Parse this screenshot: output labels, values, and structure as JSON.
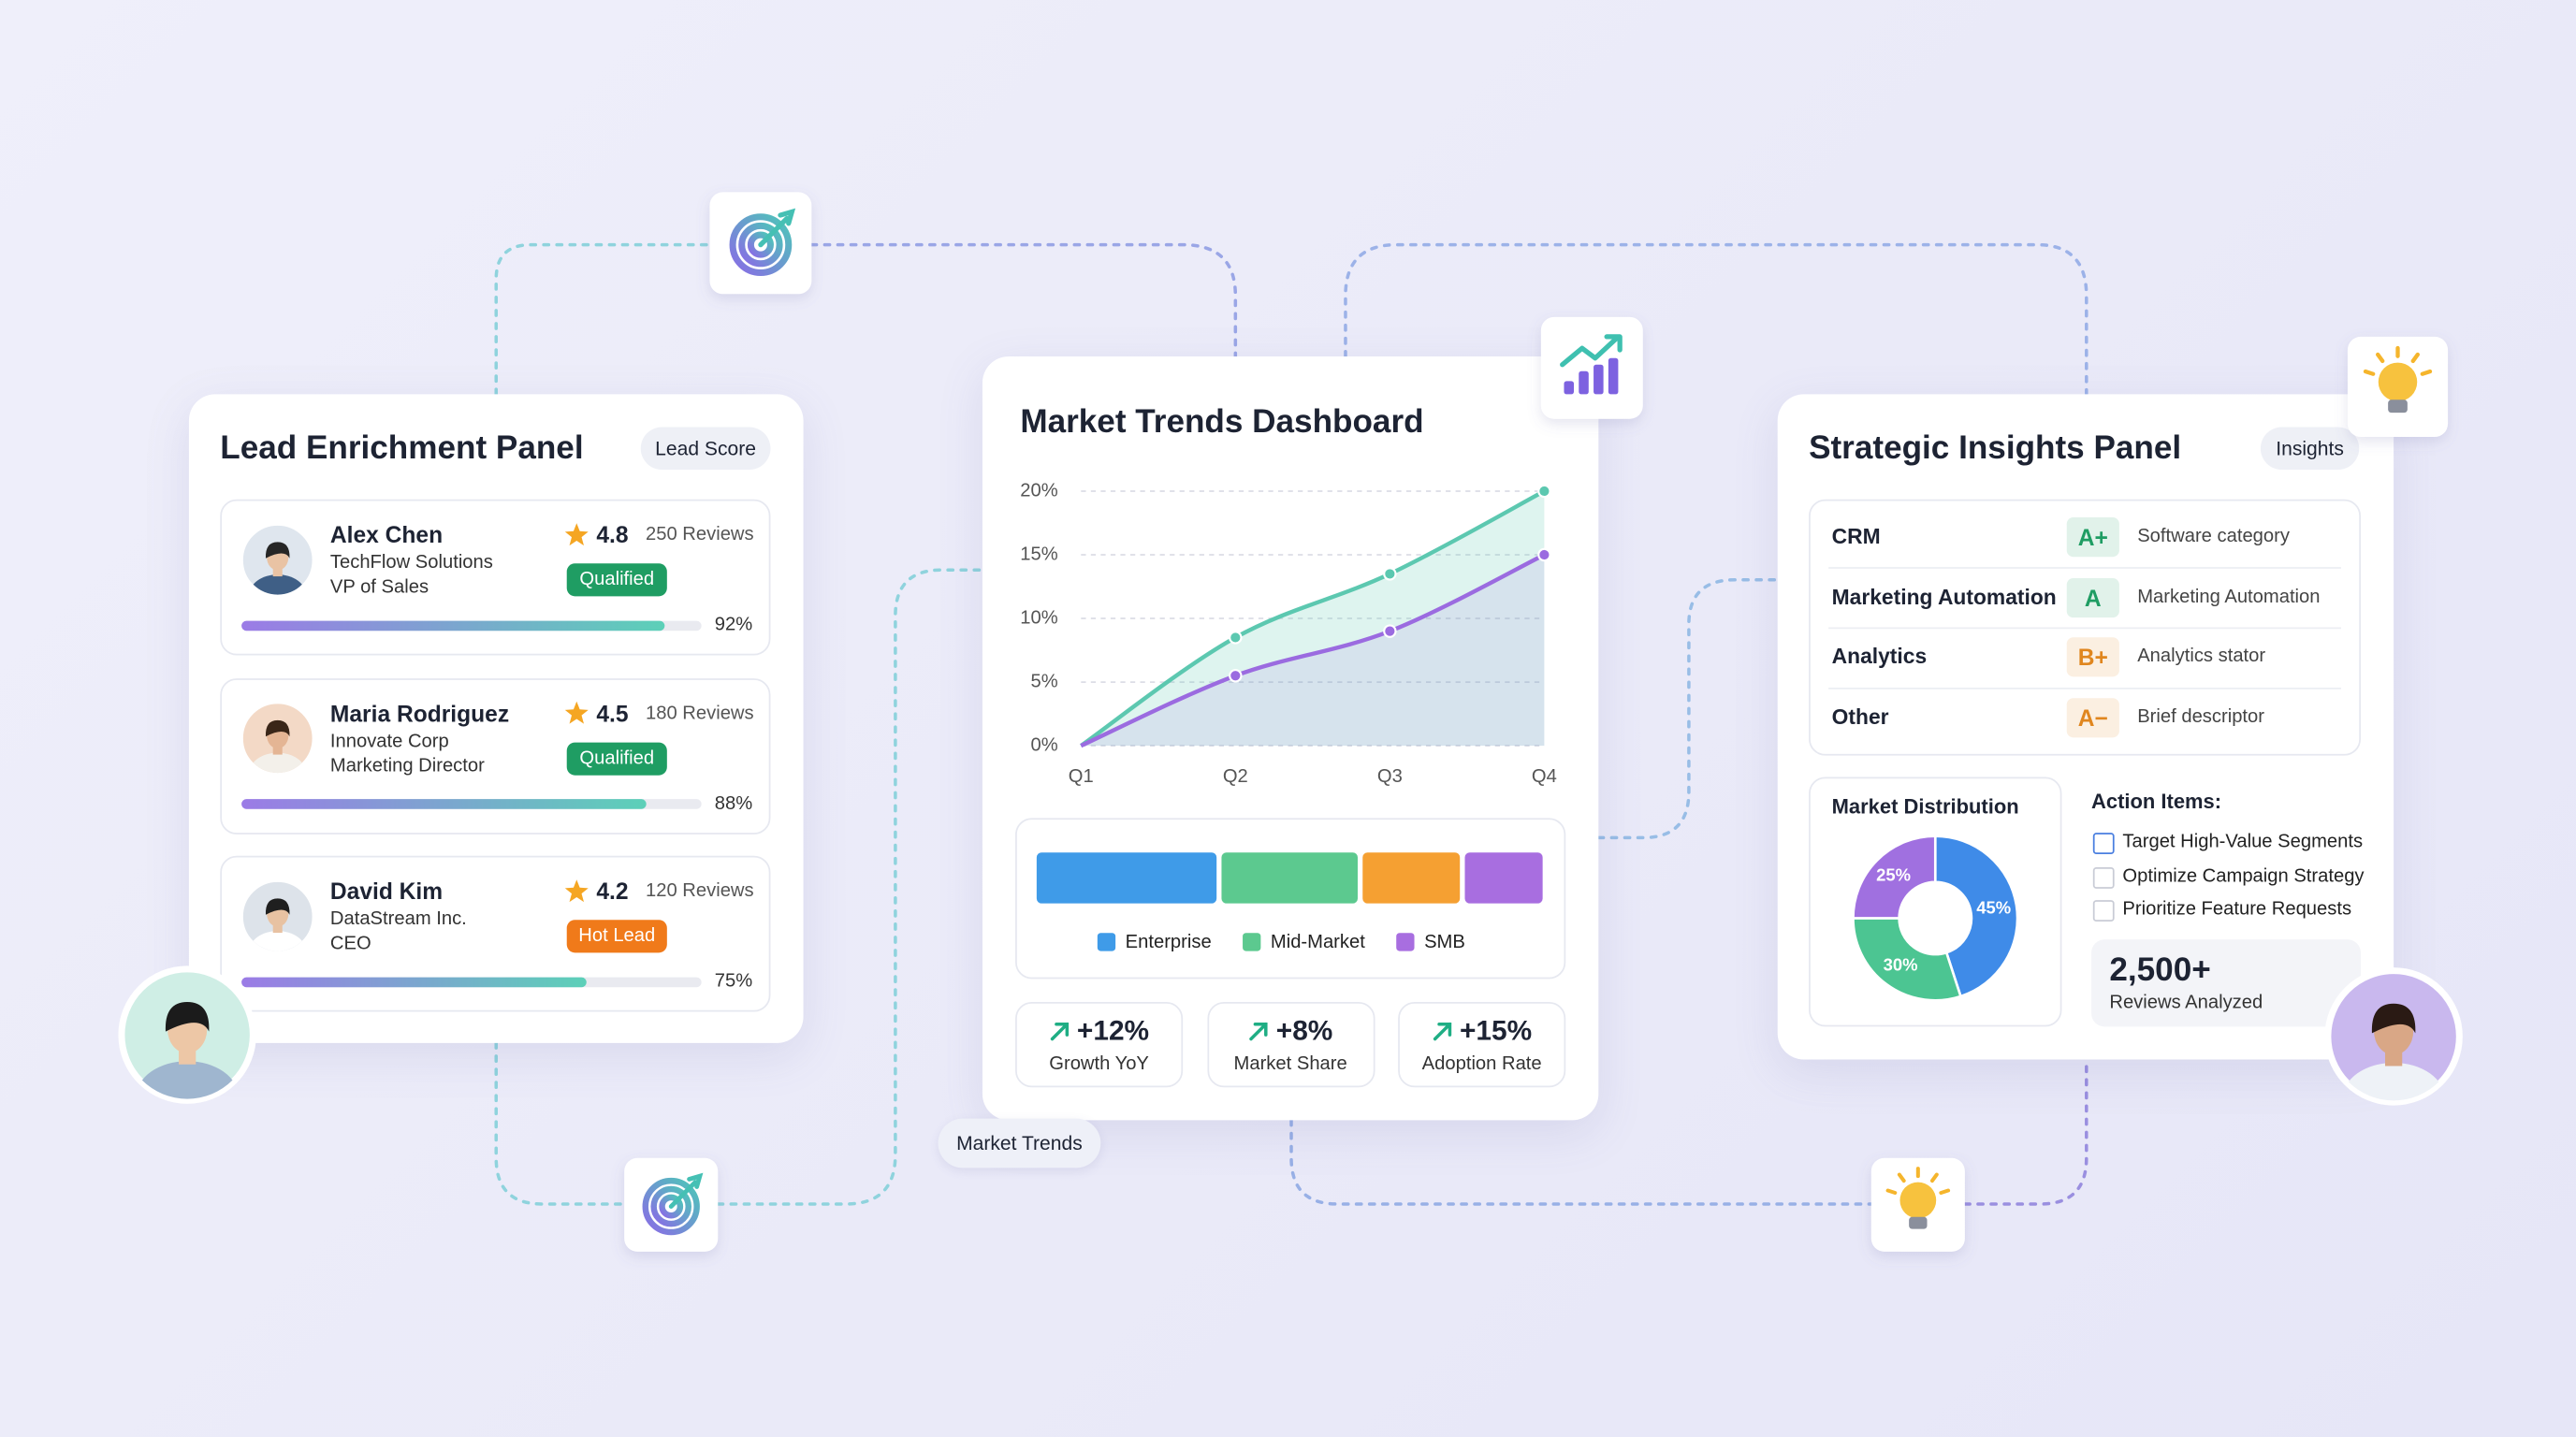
{
  "lead_panel": {
    "title": "Lead Enrichment Panel",
    "badge": "Lead Score",
    "leads": [
      {
        "name": "Alex Chen",
        "company": "TechFlow Solutions",
        "role": "VP of Sales",
        "rating": 4.8,
        "reviews": "250 Reviews",
        "status": "Qualified",
        "status_color": "#1f9d63",
        "score": 92,
        "score_label": "92%"
      },
      {
        "name": "Maria Rodriguez",
        "company": "Innovate Corp",
        "role": "Marketing Director",
        "rating": 4.5,
        "reviews": "180 Reviews",
        "status": "Qualified",
        "status_color": "#1f9d63",
        "score": 88,
        "score_label": "88%"
      },
      {
        "name": "David Kim",
        "company": "DataStream Inc.",
        "role": "CEO",
        "rating": 4.2,
        "reviews": "120 Reviews",
        "status": "Hot Lead",
        "status_color": "#f07a1a",
        "score": 75,
        "score_label": "75%"
      }
    ]
  },
  "market_panel": {
    "title": "Market Trends Dashboard",
    "tag": "Market Trends",
    "chart": {
      "type": "line",
      "categories": [
        "Q1",
        "Q2",
        "Q3",
        "Q4"
      ],
      "series": [
        {
          "color": "#5cc8b0",
          "values": [
            0,
            8.5,
            13.5,
            20
          ]
        },
        {
          "color": "#9b6be0",
          "values": [
            0,
            5.5,
            9,
            15
          ]
        }
      ],
      "ylim": [
        0,
        20
      ],
      "yticks": [
        {
          "value": 0,
          "label": "0%"
        },
        {
          "value": 5,
          "label": "5%"
        },
        {
          "value": 10,
          "label": "10%"
        },
        {
          "value": 15,
          "label": "15%"
        },
        {
          "value": 20,
          "label": "20%"
        }
      ],
      "grid": true
    },
    "segments": {
      "type": "bar",
      "categories": [
        "Enterprise",
        "Mid-Market",
        null,
        "SMB"
      ],
      "values": [
        37,
        28,
        20,
        16
      ],
      "colors": [
        "#3f9be8",
        "#5cc98f",
        "#f5a032",
        "#a86ee0"
      ]
    },
    "stats": [
      {
        "value": "+12%",
        "label": "Growth YoY"
      },
      {
        "value": "+8%",
        "label": "Market Share"
      },
      {
        "value": "+15%",
        "label": "Adoption Rate"
      }
    ]
  },
  "insights_panel": {
    "title": "Strategic Insights Panel",
    "badge": "Insights",
    "rows": [
      {
        "name": "CRM",
        "grade": "A+",
        "grade_color": "#1f9d63",
        "desc": "Software category"
      },
      {
        "name": "Marketing Automation",
        "grade": "A",
        "grade_color": "#1f9d63",
        "desc": "Marketing Automation"
      },
      {
        "name": "Analytics",
        "grade": "B+",
        "grade_color": "#e0861e",
        "desc": "Analytics stator"
      },
      {
        "name": "Other",
        "grade": "A−",
        "grade_color": "#e0861e",
        "desc": "Brief descriptor"
      }
    ],
    "distribution": {
      "type": "pie",
      "title": "Market Distribution",
      "values": [
        45,
        30,
        25
      ],
      "value_labels": [
        "45%",
        "30%",
        "25%"
      ],
      "colors": [
        "#3f8be8",
        "#4cc592",
        "#a070e0"
      ]
    },
    "actions": {
      "title": "Action Items:",
      "items": [
        "Target High-Value Segments",
        "Optimize Campaign Strategy",
        "Prioritize Feature Requests"
      ]
    },
    "reviews": {
      "count": "2,500+",
      "label": "Reviews Analyzed"
    }
  }
}
